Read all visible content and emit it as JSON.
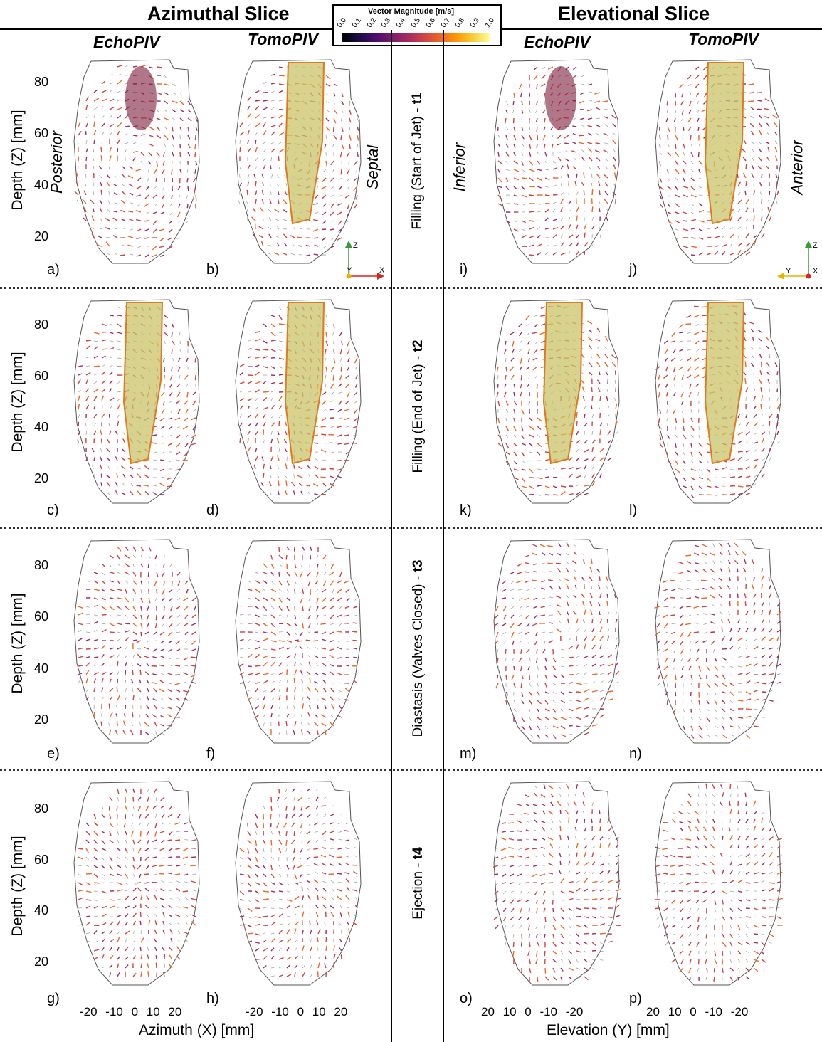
{
  "headers": {
    "azimuthal": "Azimuthal Slice",
    "elevational": "Elevational Slice"
  },
  "columns": {
    "echo_left": "EchoPIV",
    "tomo_left": "TomoPIV",
    "echo_right": "EchoPIV",
    "tomo_right": "TomoPIV"
  },
  "colorbar": {
    "title": "Vector Magnitude [m/s]",
    "ticks": [
      "0.0",
      "0.1",
      "0.2",
      "0.3",
      "0.4",
      "0.5",
      "0.6",
      "0.7",
      "0.8",
      "0.9",
      "1.0"
    ],
    "colors": [
      "#000004",
      "#1b0c41",
      "#4a0c6b",
      "#781c6d",
      "#a52c60",
      "#cf4446",
      "#ed6925",
      "#fb9b06",
      "#f7d13d",
      "#fcffa4"
    ]
  },
  "orientation": {
    "posterior": "Posterior",
    "septal": "Septal",
    "inferior": "Inferior",
    "anterior": "Anterior"
  },
  "ylabel": "Depth (Z) [mm]",
  "yticks": [
    "80",
    "60",
    "40",
    "20"
  ],
  "xlabel_left": "Azimuth (X) [mm]",
  "xlabel_right": "Elevation (Y) [mm]",
  "xticks_left": "-20 -10  0  10  20",
  "xticks_right": "20  10  0  -10 -20",
  "phases": [
    {
      "text": "Filling (Start of Jet) - ",
      "bold": "t1"
    },
    {
      "text": "Filling (End of Jet) - ",
      "bold": "t2"
    },
    {
      "text": "Diastasis (Valves Closed) - ",
      "bold": "t3"
    },
    {
      "text": "Ejection - ",
      "bold": "t4"
    }
  ],
  "panel_labels": [
    "a)",
    "b)",
    "c)",
    "d)",
    "e)",
    "f)",
    "g)",
    "h)",
    "i)",
    "j)",
    "k)",
    "l)",
    "m)",
    "n)",
    "o)",
    "p)"
  ],
  "axis_icons": {
    "left": {
      "up": "Z",
      "right": "X",
      "center": "Y"
    },
    "right": {
      "up": "Z",
      "left": "Y",
      "center": "X"
    }
  },
  "jet_panels": [
    "b",
    "c",
    "d",
    "j",
    "k",
    "l"
  ]
}
